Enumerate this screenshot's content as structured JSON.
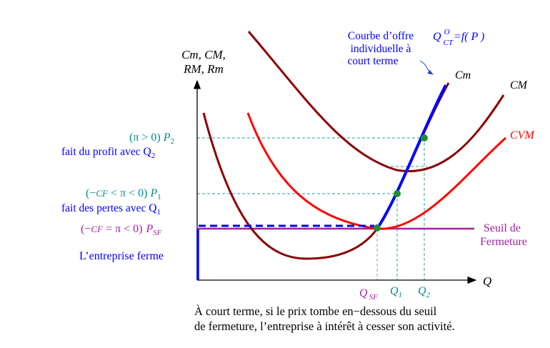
{
  "axes": {
    "y_label_line1": "Cm, CM,",
    "y_label_line2": "RM, Rm",
    "x_label": "Q"
  },
  "curves": {
    "cm": "Cm",
    "cm_avg": "CM",
    "cvm": "CVM",
    "supply_note": {
      "line1": "Courbe d’offre",
      "line2": "individuelle à",
      "line3": "court terme"
    },
    "supply_formula": {
      "q": "Q",
      "sup": "O",
      "sub": "CT",
      "rest": "=f( P )"
    }
  },
  "threshold": {
    "line1": "Seuil de",
    "line2": "Fermeture"
  },
  "prices": {
    "p2": {
      "cond": "(π > 0)",
      "label": "P",
      "sub": "2",
      "note": "fait du profit avec Q",
      "note_sub": "2"
    },
    "p1": {
      "cond_pre": "(−",
      "cond_cf": "CF",
      "cond_post": " < π < 0)",
      "label": "P",
      "sub": "1",
      "note": "fait des pertes avec Q",
      "note_sub": "1"
    },
    "psf": {
      "cond_pre": "(−",
      "cond_cf": "CF",
      "cond_post": " = π < 0)",
      "label": "P",
      "sub": "SF"
    },
    "close": "L’entreprise ferme"
  },
  "quantities": {
    "qsf": {
      "q": "Q",
      "sub": "SF"
    },
    "q1": {
      "q": "Q",
      "sub": "1"
    },
    "q2": {
      "q": "Q",
      "sub": "2"
    }
  },
  "caption": {
    "line1": "À court terme, si le prix tombe en−dessous du seuil",
    "line2": "de fermeture, l’entreprise à intérêt à cesser son activité."
  },
  "colors": {
    "dark_red": "#8b0000",
    "red": "#ff0000",
    "blue": "#0000ff",
    "teal": "#008b8b",
    "purple": "#a020a0",
    "green": "#1f8f2f"
  }
}
